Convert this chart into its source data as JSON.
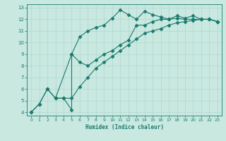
{
  "title": "",
  "xlabel": "Humidex (Indice chaleur)",
  "ylabel": "",
  "bg_color": "#c8e8e0",
  "line_color": "#1a7a6e",
  "grid_color": "#b0d8d0",
  "xlim": [
    -0.5,
    23.5
  ],
  "ylim": [
    3.7,
    13.3
  ],
  "xticks": [
    0,
    1,
    2,
    3,
    4,
    5,
    6,
    7,
    8,
    9,
    10,
    11,
    12,
    13,
    14,
    15,
    16,
    17,
    18,
    19,
    20,
    21,
    22,
    23
  ],
  "yticks": [
    4,
    5,
    6,
    7,
    8,
    9,
    10,
    11,
    12,
    13
  ],
  "line1_x": [
    0,
    1,
    2,
    3,
    4,
    5,
    5,
    6,
    7,
    8,
    9,
    10,
    11,
    12,
    13,
    14,
    15,
    16,
    17,
    18,
    19,
    20,
    21,
    22,
    23
  ],
  "line1_y": [
    4.0,
    4.7,
    6.0,
    5.2,
    5.2,
    4.2,
    9.0,
    8.3,
    8.0,
    8.5,
    9.0,
    9.3,
    9.8,
    10.2,
    11.5,
    11.5,
    11.8,
    12.0,
    12.0,
    12.1,
    12.0,
    12.0,
    12.0,
    12.0,
    11.8
  ],
  "line2_x": [
    0,
    1,
    2,
    3,
    4,
    5,
    6,
    7,
    8,
    9,
    10,
    11,
    12,
    13,
    14,
    15,
    16,
    17,
    18,
    19,
    20,
    21,
    22,
    23
  ],
  "line2_y": [
    4.0,
    4.7,
    6.0,
    5.2,
    5.2,
    5.2,
    6.2,
    7.0,
    7.8,
    8.3,
    8.8,
    9.3,
    9.8,
    10.3,
    10.8,
    11.0,
    11.2,
    11.5,
    11.7,
    11.8,
    11.9,
    12.0,
    12.0,
    11.8
  ],
  "line3_x": [
    3,
    5,
    6,
    7,
    8,
    9,
    10,
    11,
    12,
    13,
    14,
    15,
    16,
    17,
    18,
    19,
    20,
    21,
    22,
    23
  ],
  "line3_y": [
    5.2,
    9.0,
    10.5,
    11.0,
    11.3,
    11.5,
    12.1,
    12.8,
    12.4,
    12.0,
    12.7,
    12.4,
    12.2,
    12.0,
    12.3,
    12.1,
    12.3,
    12.0,
    12.0,
    11.8
  ],
  "marker": "D",
  "markersize": 2.5,
  "linewidth": 0.8
}
